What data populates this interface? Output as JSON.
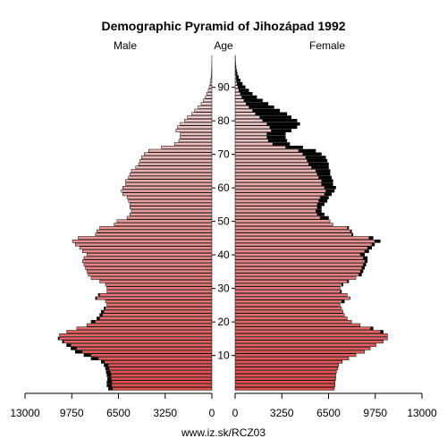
{
  "chart_data": {
    "type": "bar",
    "orientation": "horizontal-pyramid",
    "title": "Demographic Pyramid of Jihozápad 1992",
    "left_label": "Male",
    "center_label": "Age",
    "right_label": "Female",
    "source": "www.iz.sk/RCZ03",
    "x_range": [
      0,
      13000
    ],
    "x_ticks": [
      "13000",
      "9750",
      "6500",
      "3250",
      "0",
      "0",
      "3250",
      "6500",
      "9750",
      "13000"
    ],
    "age_ticks": [
      "10",
      "20",
      "30",
      "40",
      "50",
      "60",
      "70",
      "80",
      "90"
    ],
    "ages": [
      0,
      1,
      2,
      3,
      4,
      5,
      6,
      7,
      8,
      9,
      10,
      11,
      12,
      13,
      14,
      15,
      16,
      17,
      18,
      19,
      20,
      21,
      22,
      23,
      24,
      25,
      26,
      27,
      28,
      29,
      30,
      31,
      32,
      33,
      34,
      35,
      36,
      37,
      38,
      39,
      40,
      41,
      42,
      43,
      44,
      45,
      46,
      47,
      48,
      49,
      50,
      51,
      52,
      53,
      54,
      55,
      56,
      57,
      58,
      59,
      60,
      61,
      62,
      63,
      64,
      65,
      66,
      67,
      68,
      69,
      70,
      71,
      72,
      73,
      74,
      75,
      76,
      77,
      78,
      79,
      80,
      81,
      82,
      83,
      84,
      85,
      86,
      87,
      88,
      89,
      90,
      91,
      92,
      93,
      94,
      95,
      96,
      97,
      98,
      99
    ],
    "colors": {
      "male_young": "#e14a4a",
      "male_old": "#f2dede",
      "female_young": "#e14a4a",
      "female_old": "#f2dede",
      "excess": "#000000",
      "axis": "#000000"
    },
    "series": [
      {
        "name": "Male",
        "values": [
          7200,
          7300,
          7300,
          7250,
          7300,
          7350,
          7400,
          7500,
          7700,
          8400,
          8900,
          9500,
          9800,
          10100,
          10400,
          10700,
          10600,
          10100,
          9400,
          8700,
          8400,
          8000,
          7800,
          7700,
          7500,
          7300,
          7400,
          8100,
          7900,
          7300,
          7300,
          7400,
          7800,
          8400,
          8600,
          8700,
          8800,
          8900,
          9000,
          8900,
          8700,
          9000,
          9200,
          9500,
          9700,
          9300,
          8100,
          8000,
          7800,
          6800,
          6600,
          5900,
          5700,
          5600,
          5700,
          5700,
          5800,
          5900,
          6200,
          6300,
          6200,
          6000,
          6000,
          5800,
          5700,
          5600,
          5300,
          5100,
          5000,
          4900,
          4700,
          4400,
          3500,
          2600,
          2300,
          2200,
          2200,
          2500,
          2400,
          2200,
          1900,
          1700,
          1400,
          1200,
          950,
          750,
          600,
          450,
          350,
          250,
          180,
          120,
          80,
          55,
          35,
          20,
          12,
          7,
          4,
          2
        ]
      },
      {
        "name": "Female",
        "values": [
          6900,
          6950,
          6950,
          7000,
          7000,
          7050,
          7150,
          7200,
          7450,
          7900,
          8400,
          9000,
          9400,
          9800,
          10300,
          10600,
          10600,
          10300,
          9600,
          8700,
          8100,
          7800,
          7600,
          7500,
          7400,
          7300,
          7600,
          8000,
          7800,
          7400,
          7300,
          7500,
          7900,
          8400,
          8800,
          8900,
          9000,
          9100,
          9200,
          9200,
          9000,
          9300,
          9500,
          9700,
          10100,
          9600,
          8200,
          8100,
          7900,
          6800,
          6600,
          6500,
          6200,
          6000,
          6000,
          6200,
          6400,
          6500,
          6700,
          6900,
          7000,
          6800,
          6800,
          6700,
          6600,
          6600,
          6500,
          6500,
          6400,
          6300,
          6000,
          5600,
          4700,
          3800,
          3600,
          3500,
          3500,
          3900,
          4300,
          4500,
          4300,
          3900,
          3600,
          3100,
          2700,
          2300,
          1900,
          1500,
          1200,
          950,
          700,
          500,
          350,
          230,
          150,
          95,
          60,
          35,
          20,
          10
        ]
      },
      {
        "name": "Male (counterpart)",
        "values": [
          6900,
          6950,
          6950,
          7000,
          7000,
          7050,
          7150,
          7200,
          7450,
          7900,
          8400,
          9000,
          9400,
          9800,
          10300,
          10600,
          10600,
          10300,
          9600,
          8700,
          8100,
          7800,
          7600,
          7500,
          7400,
          7300,
          7600,
          8000,
          7800,
          7400,
          7300,
          7500,
          7900,
          8400,
          8800,
          8900,
          9000,
          9100,
          9200,
          9200,
          9000,
          9300,
          9500,
          9700,
          10100,
          9600,
          8200,
          8100,
          7900,
          6800,
          6600,
          6500,
          6200,
          6000,
          6000,
          6200,
          6400,
          6500,
          6700,
          6900,
          7000,
          6800,
          6800,
          6700,
          6600,
          6600,
          6500,
          6500,
          6400,
          6300,
          6000,
          5600,
          4700,
          3800,
          3600,
          3500,
          3500,
          3900,
          4300,
          4500,
          4300,
          3900,
          3600,
          3100,
          2700,
          2300,
          1900,
          1500,
          1200,
          950,
          700,
          500,
          350,
          230,
          150,
          95,
          60,
          35,
          20,
          10
        ]
      }
    ]
  }
}
